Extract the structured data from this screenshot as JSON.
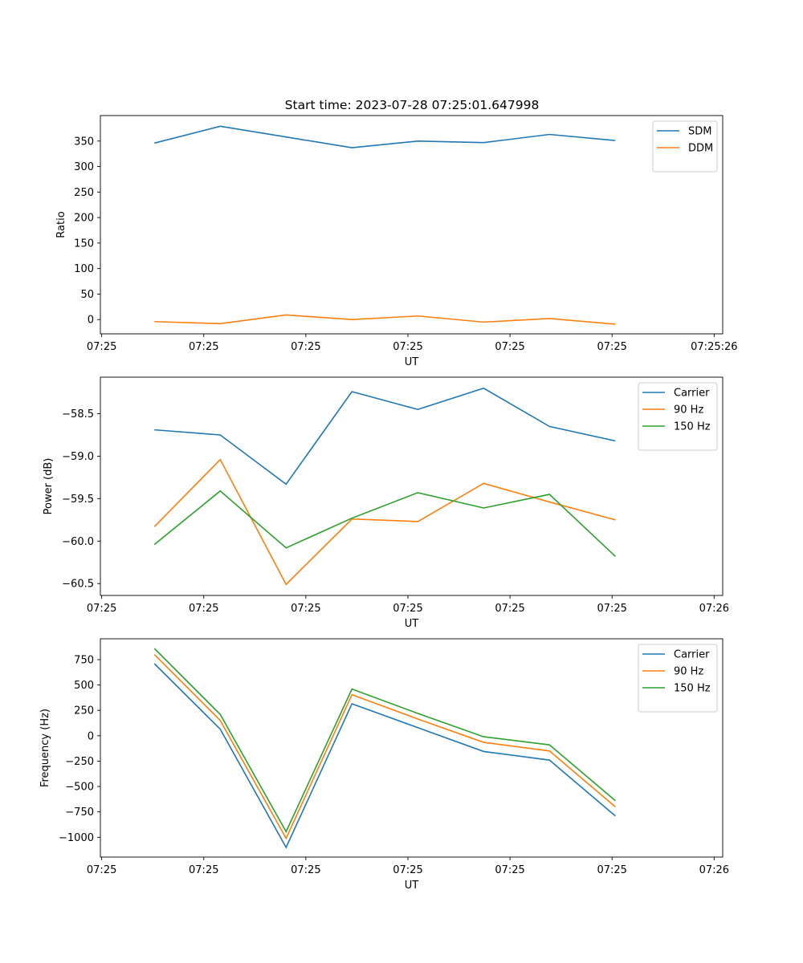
{
  "figure": {
    "title": "Start time: 2023-07-28 07:25:01.647998"
  },
  "chart_data": [
    {
      "type": "line",
      "title": "Start time: 2023-07-28 07:25:01.647998",
      "xlabel": "UT",
      "ylabel": "Ratio",
      "x": [
        1,
        2,
        3,
        4,
        5,
        6,
        7,
        8
      ],
      "xlim": [
        0.18,
        9.63
      ],
      "xticks": [
        0.2,
        1.75,
        3.3,
        4.85,
        6.4,
        7.95,
        9.5
      ],
      "xtick_labels": [
        "07:25",
        "07:25",
        "07:25",
        "07:25",
        "07:25",
        "07:25",
        "07:25:26"
      ],
      "ylim": [
        -28,
        400
      ],
      "yticks": [
        0,
        50,
        100,
        150,
        200,
        250,
        300,
        350
      ],
      "ytick_labels": [
        "0",
        "50",
        "100",
        "150",
        "200",
        "250",
        "300",
        "350"
      ],
      "legend_position": "top-right",
      "series": [
        {
          "name": "SDM",
          "color": "#1f77b4",
          "values": [
            346,
            379,
            358,
            337,
            350,
            347,
            363,
            351
          ]
        },
        {
          "name": "DDM",
          "color": "#ff7f0e",
          "values": [
            -4,
            -8,
            9,
            0,
            7,
            -5,
            2,
            -9
          ]
        }
      ]
    },
    {
      "type": "line",
      "xlabel": "UT",
      "ylabel": "Power (dB)",
      "x": [
        1,
        2,
        3,
        4,
        5,
        6,
        7,
        8
      ],
      "xlim": [
        0.18,
        9.63
      ],
      "xticks": [
        0.2,
        1.75,
        3.3,
        4.85,
        6.4,
        7.95,
        9.5
      ],
      "xtick_labels": [
        "07:25",
        "07:25",
        "07:25",
        "07:25",
        "07:25",
        "07:25",
        "07:26"
      ],
      "ylim": [
        -60.64,
        -58.07
      ],
      "yticks": [
        -60.5,
        -60.0,
        -59.5,
        -59.0,
        -58.5
      ],
      "ytick_labels": [
        "−60.5",
        "−60.0",
        "−59.5",
        "−59.0",
        "−58.5"
      ],
      "legend_position": "top-right",
      "series": [
        {
          "name": "Carrier",
          "color": "#1f77b4",
          "values": [
            -58.69,
            -58.75,
            -59.33,
            -58.24,
            -58.45,
            -58.2,
            -58.65,
            -58.82
          ]
        },
        {
          "name": "90 Hz",
          "color": "#ff7f0e",
          "values": [
            -59.83,
            -59.04,
            -60.51,
            -59.74,
            -59.77,
            -59.32,
            -59.54,
            -59.75
          ]
        },
        {
          "name": "150 Hz",
          "color": "#2ca02c",
          "values": [
            -60.04,
            -59.41,
            -60.08,
            -59.73,
            -59.43,
            -59.61,
            -59.45,
            -60.18
          ]
        }
      ]
    },
    {
      "type": "line",
      "xlabel": "UT",
      "ylabel": "Frequency (Hz)",
      "x": [
        1,
        2,
        3,
        4,
        5,
        6,
        7,
        8
      ],
      "xlim": [
        0.18,
        9.63
      ],
      "xticks": [
        0.2,
        1.75,
        3.3,
        4.85,
        6.4,
        7.95,
        9.5
      ],
      "xtick_labels": [
        "07:25",
        "07:25",
        "07:25",
        "07:25",
        "07:25",
        "07:25",
        "07:26"
      ],
      "ylim": [
        -1195,
        955
      ],
      "yticks": [
        -1000,
        -750,
        -500,
        -250,
        0,
        250,
        500,
        750
      ],
      "ytick_labels": [
        "−1000",
        "−750",
        "−500",
        "−250",
        "0",
        "250",
        "500",
        "750"
      ],
      "legend_position": "top-right",
      "series": [
        {
          "name": "Carrier",
          "color": "#1f77b4",
          "values": [
            710,
            65,
            -1100,
            315,
            80,
            -155,
            -240,
            -790
          ]
        },
        {
          "name": "90 Hz",
          "color": "#ff7f0e",
          "values": [
            800,
            150,
            -1010,
            405,
            165,
            -65,
            -150,
            -700
          ]
        },
        {
          "name": "150 Hz",
          "color": "#2ca02c",
          "values": [
            860,
            210,
            -945,
            460,
            220,
            -10,
            -90,
            -640
          ]
        }
      ]
    }
  ]
}
